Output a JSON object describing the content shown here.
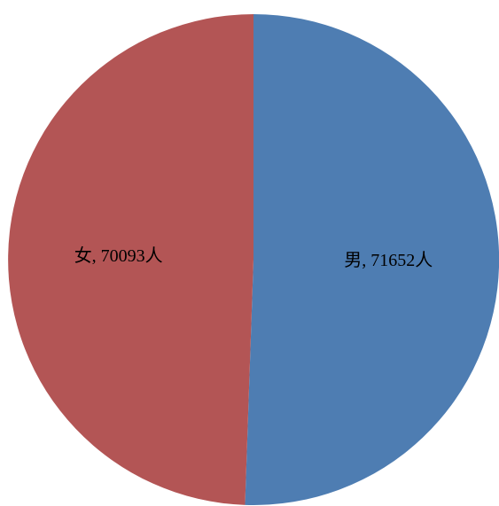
{
  "chart_data": {
    "type": "pie",
    "title": "",
    "slices": [
      {
        "label": "男, 71652人",
        "name": "男",
        "value": 71652,
        "color": "#4E7DB2"
      },
      {
        "label": "女, 70093人",
        "name": "女",
        "value": 70093,
        "color": "#B35555"
      }
    ],
    "start_angle_deg": 0,
    "direction": "clockwise",
    "legend": "none"
  }
}
